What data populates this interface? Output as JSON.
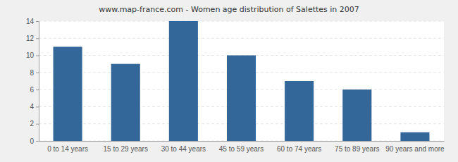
{
  "chart_data": {
    "type": "bar",
    "title": "www.map-france.com - Women age distribution of Salettes in 2007",
    "categories": [
      "0 to 14 years",
      "15 to 29 years",
      "30 to 44 years",
      "45 to 59 years",
      "60 to 74 years",
      "75 to 89 years",
      "90 years and more"
    ],
    "values": [
      11,
      9,
      14,
      10,
      7,
      6,
      1
    ],
    "color": "#336699",
    "ylim": [
      0,
      14
    ],
    "yticks": [
      0,
      2,
      4,
      6,
      8,
      10,
      12,
      14
    ],
    "grid": true
  }
}
